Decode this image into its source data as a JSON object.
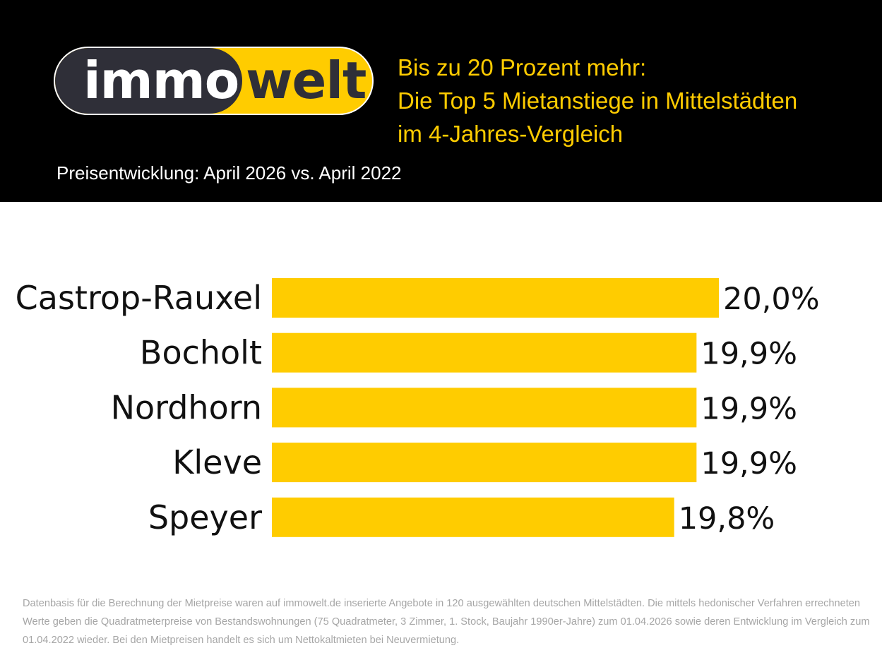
{
  "logo": {
    "part1": "immo",
    "part2": "welt"
  },
  "header": {
    "title_lines": [
      "Bis zu 20 Prozent mehr:",
      "Die Top 5 Mietanstiege in Mittelstädten",
      "im 4-Jahres-Vergleich"
    ],
    "subtitle": "Preisentwicklung: April 2026 vs. April 2022"
  },
  "colors": {
    "bar": "#ffcc00",
    "header_bg": "#000000",
    "title": "#ffcc00"
  },
  "chart_data": {
    "type": "bar",
    "orientation": "horizontal",
    "title": "Bis zu 20 Prozent mehr: Die Top 5 Mietanstiege in Mittelstädten im 4-Jahres-Vergleich",
    "subtitle": "Preisentwicklung: April 2026 vs. April 2022",
    "categories": [
      "Castrop-Rauxel",
      "Bocholt",
      "Nordhorn",
      "Kleve",
      "Speyer"
    ],
    "values": [
      20.0,
      19.9,
      19.9,
      19.9,
      19.8
    ],
    "labels": [
      "20,0%",
      "19,9%",
      "19,9%",
      "19,9%",
      "19,8%"
    ],
    "unit": "%",
    "xlim": [
      18.0,
      20.0
    ],
    "grid": false,
    "legend": "none"
  },
  "footnote": "Datenbasis für die Berechnung der Mietpreise waren auf immowelt.de inserierte Angebote in 120 ausgewählten deutschen Mittelstädten. Die mittels hedonischer Verfahren errechneten Werte geben die Quadratmeterpreise von Bestandswohnungen (75 Quadratmeter, 3 Zimmer, 1. Stock, Baujahr 1990er-Jahre) zum 01.04.2026 sowie deren Entwicklung im Vergleich zum 01.04.2022 wieder. Bei den Mietpreisen handelt es sich um Nettokaltmieten bei Neuvermietung."
}
